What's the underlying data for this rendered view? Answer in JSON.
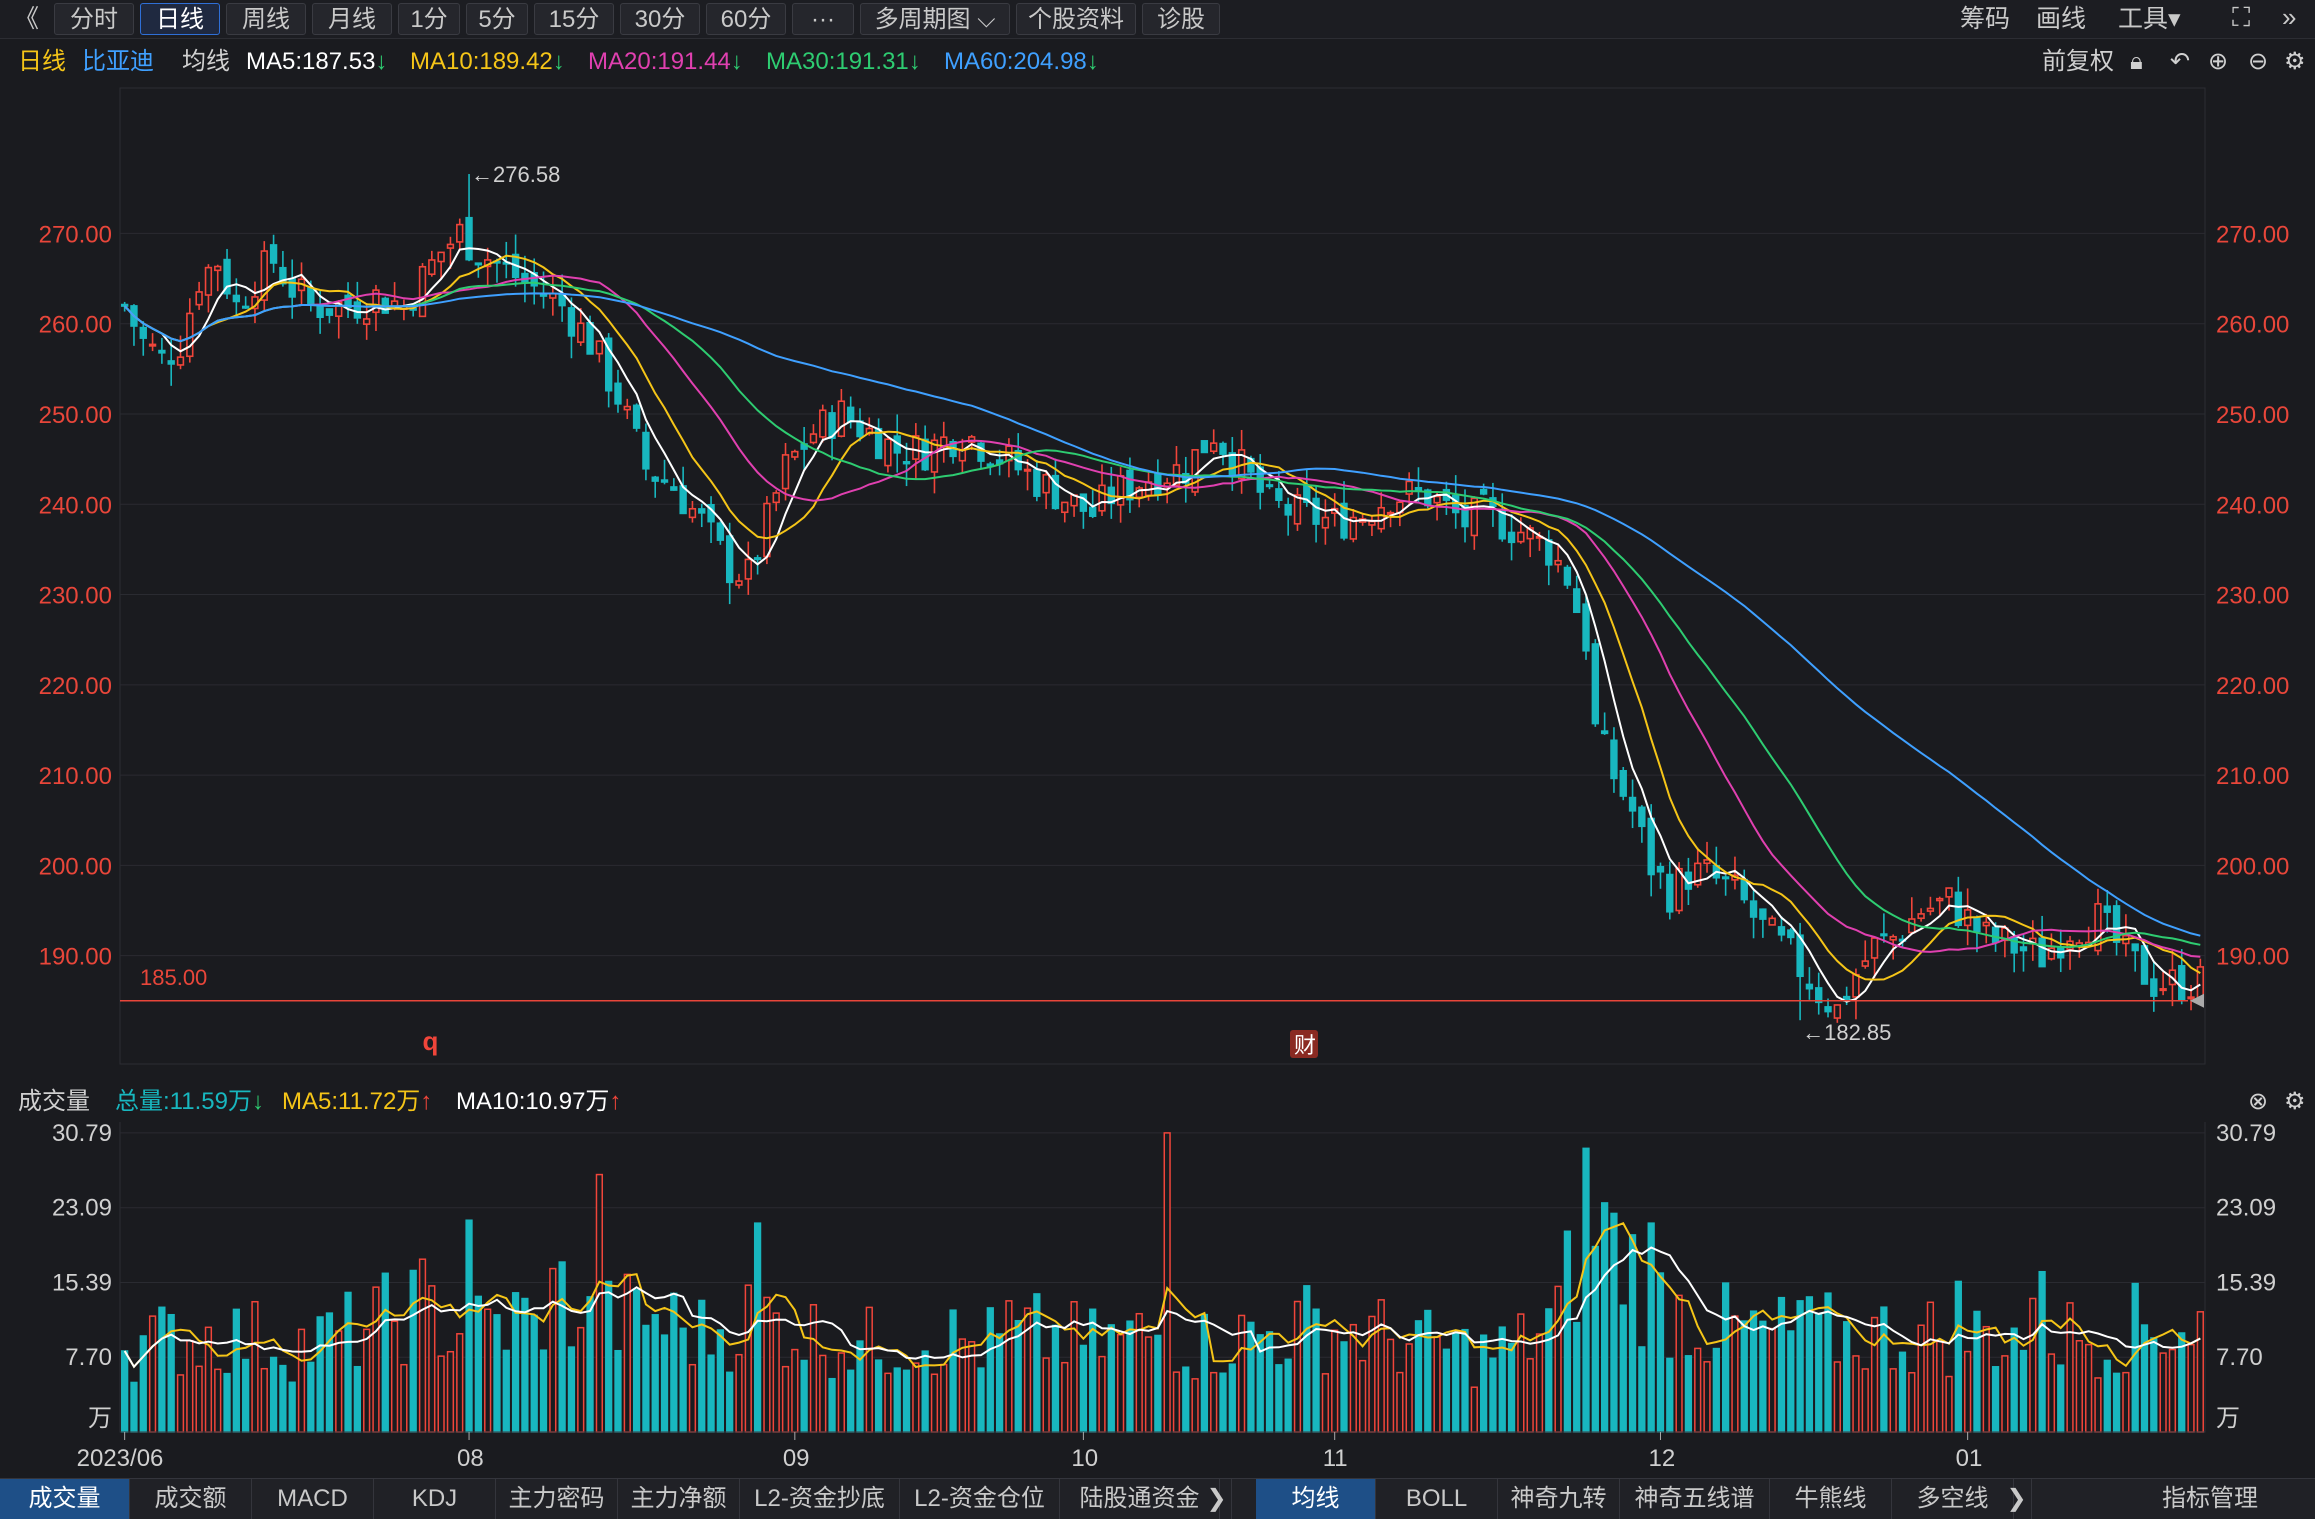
{
  "toolbar": {
    "back": "《",
    "tabs": [
      "分时",
      "日线",
      "周线",
      "月线",
      "1分",
      "5分",
      "15分",
      "30分",
      "60分",
      "···",
      "多周期图 ⌵",
      "个股资料",
      "诊股"
    ],
    "active": 1,
    "right": [
      "筹码",
      "画线",
      "工具▾"
    ]
  },
  "ma_line": {
    "period": "日线",
    "stock": "比亚迪",
    "label": "均线",
    "items": [
      {
        "text": "MA5:187.53",
        "arrow": "↓",
        "color": "#ffffff"
      },
      {
        "text": "MA10:189.42",
        "arrow": "↓",
        "color": "#f5c518"
      },
      {
        "text": "MA20:191.44",
        "arrow": "↓",
        "color": "#e040b0"
      },
      {
        "text": "MA30:191.31",
        "arrow": "↓",
        "color": "#2ecc71"
      },
      {
        "text": "MA60:204.98",
        "arrow": "↓",
        "color": "#3fa0ff"
      }
    ],
    "adjust": "前复权"
  },
  "price_axis": {
    "ticks": [
      "270.00",
      "260.00",
      "250.00",
      "240.00",
      "230.00",
      "220.00",
      "210.00",
      "200.00",
      "190.00"
    ],
    "values": [
      270,
      260,
      250,
      240,
      230,
      220,
      210,
      200,
      190
    ],
    "ylim": [
      178,
      285
    ]
  },
  "annotations": {
    "high": "←276.58",
    "low": "←182.85",
    "line_label": "185.00",
    "line_value": 185,
    "marker_q": "q",
    "marker_cai": "财"
  },
  "volume": {
    "title": "成交量",
    "total": "总量:11.59万",
    "ma5": "MA5:11.72万",
    "ma10": "MA10:10.97万",
    "ticks": [
      "30.79",
      "23.09",
      "15.39",
      "7.70",
      "万"
    ],
    "tick_values": [
      30.79,
      23.09,
      15.39,
      7.7
    ],
    "ylim": [
      0,
      31.5
    ]
  },
  "x_axis": {
    "labels": [
      "2023/06",
      "08",
      "09",
      "10",
      "11",
      "12",
      "01"
    ],
    "label_index": [
      0,
      37,
      72,
      103,
      130,
      165,
      198
    ]
  },
  "bottom_tabs_left": [
    "成交量",
    "成交额",
    "MACD",
    "KDJ",
    "主力密码",
    "主力净额",
    "L2-资金抄底",
    "L2-资金仓位",
    "陆股通资金"
  ],
  "bottom_tabs_right": [
    "均线",
    "BOLL",
    "神奇九转",
    "神奇五线谱",
    "牛熊线",
    "多空线"
  ],
  "bottom_tabs_end": "指标管理",
  "colors": {
    "up": "#f0453a",
    "down": "#18b7bf",
    "ma5": "#ffffff",
    "ma10": "#f5c518",
    "ma20": "#e040b0",
    "ma30": "#2ecc71",
    "ma60": "#3fa0ff",
    "axis": "#e8463a"
  },
  "chart_data": {
    "type": "candlestick",
    "anchors": [
      [
        0,
        262
      ],
      [
        2,
        258
      ],
      [
        4,
        256
      ],
      [
        6,
        258
      ],
      [
        8,
        265
      ],
      [
        10,
        267
      ],
      [
        12,
        262
      ],
      [
        14,
        265
      ],
      [
        16,
        267
      ],
      [
        18,
        264
      ],
      [
        20,
        262
      ],
      [
        24,
        262
      ],
      [
        27,
        263
      ],
      [
        30,
        262
      ],
      [
        34,
        268
      ],
      [
        36,
        270
      ],
      [
        38,
        268
      ],
      [
        41,
        266
      ],
      [
        44,
        264
      ],
      [
        47,
        262
      ],
      [
        50,
        258
      ],
      [
        53,
        252
      ],
      [
        56,
        244
      ],
      [
        59,
        242
      ],
      [
        62,
        238
      ],
      [
        65,
        233
      ],
      [
        67,
        232
      ],
      [
        69,
        238
      ],
      [
        71,
        244
      ],
      [
        74,
        248
      ],
      [
        77,
        250
      ],
      [
        80,
        248
      ],
      [
        83,
        246
      ],
      [
        86,
        246
      ],
      [
        90,
        248
      ],
      [
        93,
        246
      ],
      [
        96,
        244
      ],
      [
        99,
        242
      ],
      [
        102,
        240
      ],
      [
        104,
        239
      ],
      [
        106,
        241
      ],
      [
        110,
        243
      ],
      [
        114,
        244
      ],
      [
        117,
        248
      ],
      [
        120,
        244
      ],
      [
        123,
        240
      ],
      [
        126,
        239
      ],
      [
        130,
        238
      ],
      [
        133,
        239
      ],
      [
        136,
        241
      ],
      [
        140,
        241
      ],
      [
        144,
        238
      ],
      [
        146,
        239
      ],
      [
        148,
        238
      ],
      [
        150,
        237
      ],
      [
        153,
        235
      ],
      [
        155,
        232
      ],
      [
        157,
        225
      ],
      [
        158,
        215
      ],
      [
        160,
        210
      ],
      [
        162,
        206
      ],
      [
        164,
        200
      ],
      [
        166,
        197
      ],
      [
        168,
        199
      ],
      [
        170,
        199
      ],
      [
        173,
        197
      ],
      [
        176,
        193
      ],
      [
        179,
        190
      ],
      [
        182,
        186
      ],
      [
        184,
        184
      ],
      [
        186,
        188
      ],
      [
        188,
        191
      ],
      [
        190,
        192
      ],
      [
        193,
        195
      ],
      [
        196,
        196
      ],
      [
        198,
        194
      ],
      [
        200,
        192
      ],
      [
        203,
        191
      ],
      [
        206,
        190
      ],
      [
        209,
        193
      ],
      [
        212,
        194
      ],
      [
        215,
        190
      ],
      [
        218,
        187
      ],
      [
        221,
        187
      ],
      [
        223,
        187
      ]
    ],
    "volume_anchors": [
      [
        0,
        9
      ],
      [
        10,
        10
      ],
      [
        20,
        9
      ],
      [
        27,
        11
      ],
      [
        32,
        13
      ],
      [
        36,
        10
      ],
      [
        41,
        11
      ],
      [
        47,
        14
      ],
      [
        50,
        11
      ],
      [
        56,
        12
      ],
      [
        62,
        10
      ],
      [
        68,
        12
      ],
      [
        74,
        10
      ],
      [
        80,
        9
      ],
      [
        86,
        10
      ],
      [
        92,
        9
      ],
      [
        98,
        10
      ],
      [
        104,
        9
      ],
      [
        110,
        10
      ],
      [
        116,
        9
      ],
      [
        122,
        10
      ],
      [
        128,
        11
      ],
      [
        134,
        10
      ],
      [
        140,
        9
      ],
      [
        146,
        8
      ],
      [
        150,
        9
      ],
      [
        154,
        12
      ],
      [
        156,
        18
      ],
      [
        158,
        22
      ],
      [
        160,
        20
      ],
      [
        162,
        17
      ],
      [
        164,
        14
      ],
      [
        166,
        13
      ],
      [
        170,
        11
      ],
      [
        176,
        10
      ],
      [
        182,
        10
      ],
      [
        188,
        10
      ],
      [
        194,
        10
      ],
      [
        200,
        10
      ],
      [
        206,
        10
      ],
      [
        212,
        10
      ],
      [
        218,
        11
      ],
      [
        223,
        11
      ]
    ],
    "spikes": {
      "51": 26.5,
      "68": 21.5,
      "37": 21.8,
      "44": 12,
      "95": 13.5,
      "112": 30.79,
      "140": 12.5,
      "157": 29.2,
      "160": 22.5,
      "164": 21.5,
      "206": 16.5,
      "197": 15.5,
      "180": 13.5
    },
    "n": 224,
    "high_index": 37,
    "low_index": 180
  }
}
